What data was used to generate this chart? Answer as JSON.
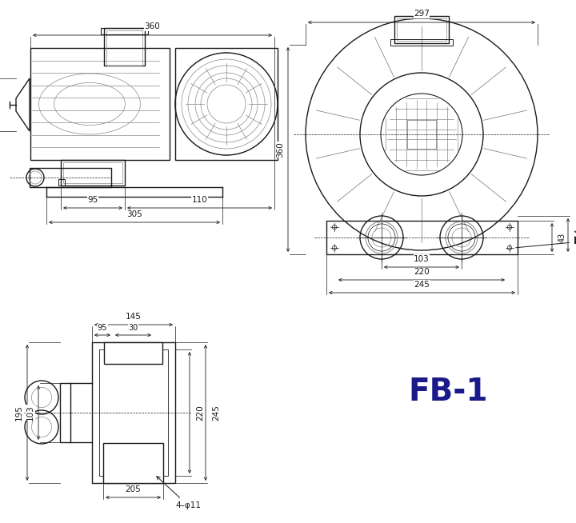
{
  "title": "FB-1",
  "title_color": "#1a1a8a",
  "bg_color": "#ffffff",
  "lc": "#1a1a1a",
  "gc": "#888888",
  "dc": "#1a1a1a",
  "fs": 7.5,
  "lw_main": 1.0,
  "lw_thin": 0.6,
  "lw_dim": 0.6
}
